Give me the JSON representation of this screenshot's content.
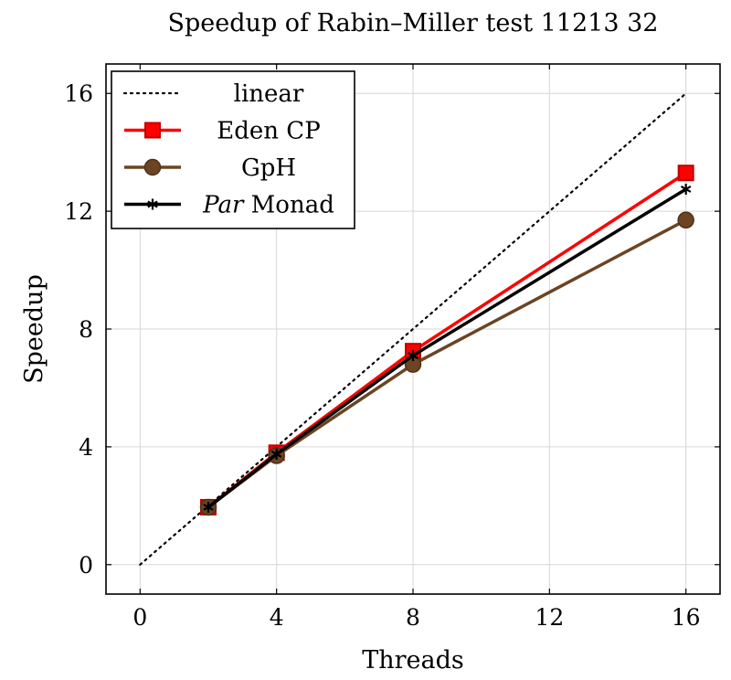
{
  "chart_data": {
    "type": "line",
    "title": "Speedup of Rabin–Miller test 11213 32",
    "xlabel": "Threads",
    "ylabel": "Speedup",
    "xlim": [
      -1,
      17
    ],
    "ylim": [
      -1,
      17
    ],
    "xticks": [
      0,
      4,
      8,
      12,
      16
    ],
    "yticks": [
      0,
      4,
      8,
      12,
      16
    ],
    "grid": true,
    "legend_position": "top-left",
    "series": [
      {
        "name": "linear",
        "key": "linear",
        "style": "dotted",
        "color": "#000000",
        "marker": "none",
        "x": [
          0,
          16
        ],
        "y": [
          0,
          16
        ]
      },
      {
        "name": "Eden CP",
        "key": "eden",
        "style": "solid",
        "color": "#ff0000",
        "marker": "square",
        "x": [
          2,
          4,
          8,
          16
        ],
        "y": [
          1.95,
          3.8,
          7.25,
          13.3
        ]
      },
      {
        "name": "GpH",
        "key": "gph",
        "style": "solid",
        "color": "#6b4423",
        "marker": "circle",
        "x": [
          2,
          4,
          8,
          16
        ],
        "y": [
          1.95,
          3.7,
          6.8,
          11.7
        ]
      },
      {
        "name": "Par Monad",
        "name_parts": [
          "Par",
          " Monad"
        ],
        "key": "par",
        "style": "solid",
        "color": "#000000",
        "marker": "star",
        "x": [
          2,
          4,
          8,
          16
        ],
        "y": [
          1.95,
          3.75,
          7.1,
          12.75
        ]
      }
    ]
  }
}
